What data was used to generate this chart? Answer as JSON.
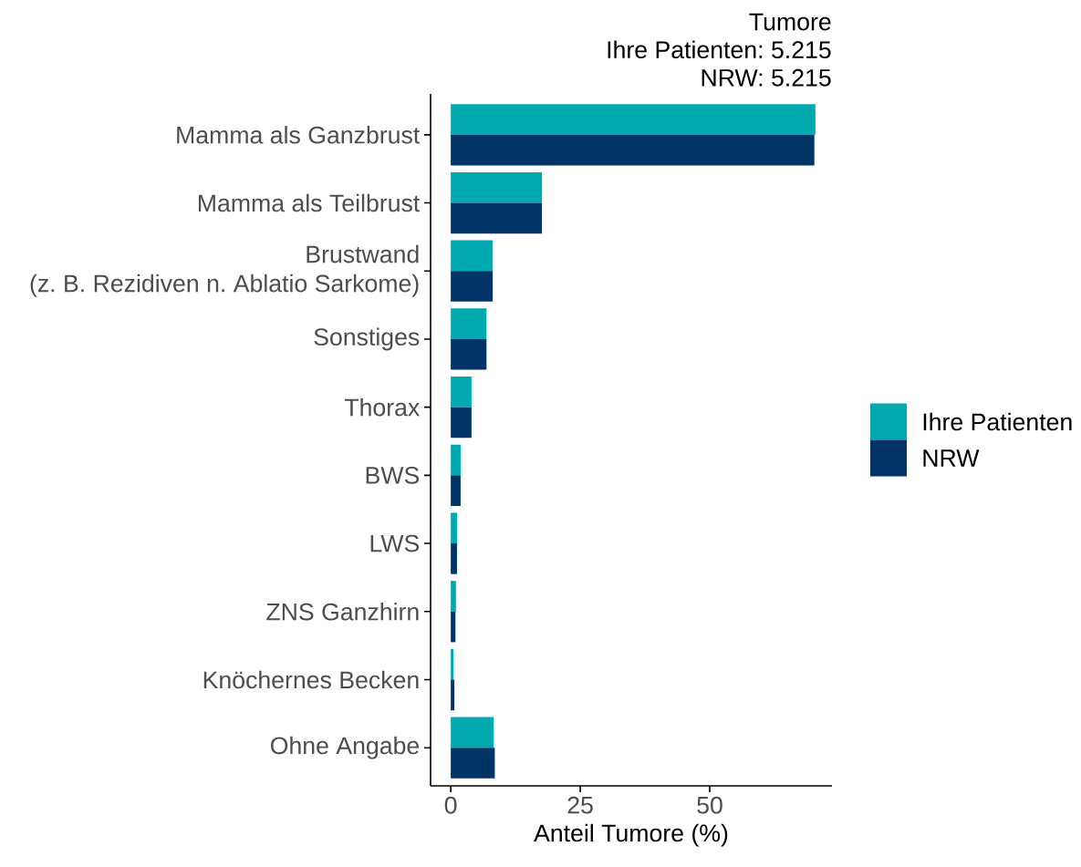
{
  "chart_data": {
    "type": "bar",
    "orientation": "horizontal",
    "title": "Tumore",
    "annotations": [
      "Ihre Patienten: 5.215",
      "NRW: 5.215"
    ],
    "xlabel": "Anteil Tumore (%)",
    "categories": [
      "Mamma als Ganzbrust",
      "Mamma als Teilbrust",
      "Brustwand\n(z. B. Rezidiven n. Ablatio Sarkome)",
      "Sonstiges",
      "Thorax",
      "BWS",
      "LWS",
      "ZNS Ganzhirn",
      "Knöchernes Becken",
      "Ohne Angabe"
    ],
    "series": [
      {
        "name": "Ihre Patienten",
        "color": "#00a8b0",
        "values": [
          70.4,
          17.6,
          8.1,
          6.9,
          4.0,
          1.9,
          1.2,
          1.0,
          0.5,
          8.3
        ]
      },
      {
        "name": "NRW",
        "color": "#003366",
        "values": [
          70.2,
          17.6,
          8.1,
          6.9,
          4.0,
          1.9,
          1.2,
          0.9,
          0.7,
          8.5
        ]
      }
    ],
    "xlim": [
      -3.9,
      73.6
    ],
    "xticks": [
      0,
      25,
      50
    ],
    "grid": false,
    "legend": "right"
  }
}
